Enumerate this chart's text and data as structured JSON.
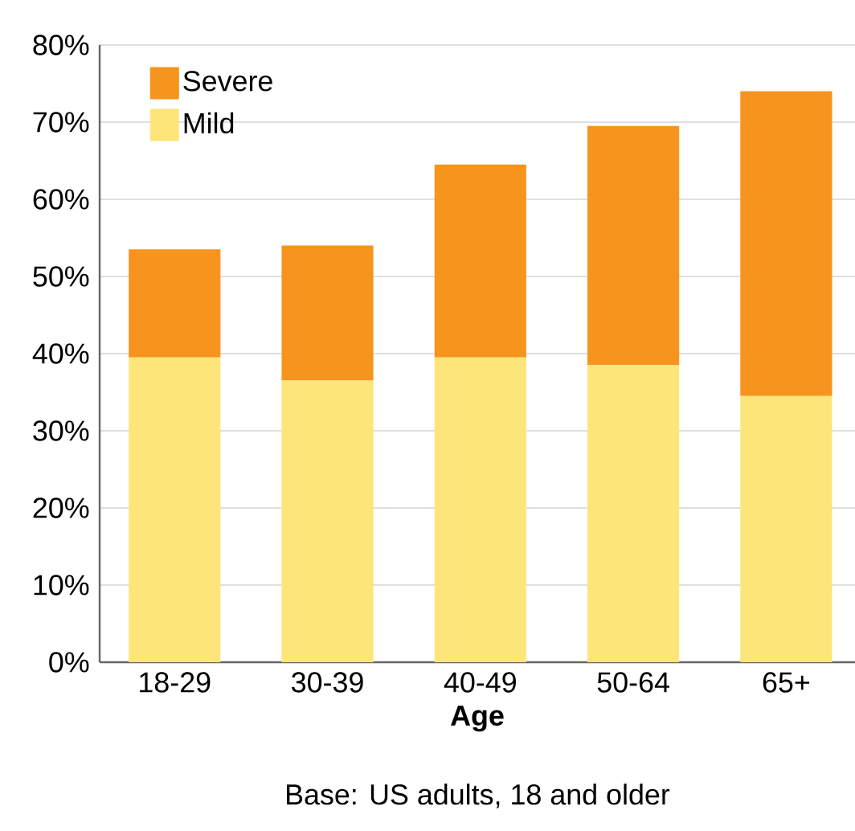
{
  "chart_data": {
    "type": "bar",
    "stacked": true,
    "xlabel": "Age",
    "annotations": [
      "Base: US adults, 18 and older"
    ],
    "categories": [
      "18-29",
      "30-39",
      "40-49",
      "50-64",
      "65+"
    ],
    "series": [
      {
        "name": "Mild",
        "color": "#fde57a",
        "values": [
          39.5,
          36.5,
          39.5,
          38.5,
          34.5
        ]
      },
      {
        "name": "Severe",
        "color": "#f7941d",
        "values": [
          14,
          17.5,
          25,
          31,
          39.5
        ]
      }
    ],
    "ylim": [
      0,
      80
    ],
    "yticks": [
      {
        "value": 0,
        "label": "0%"
      },
      {
        "value": 10,
        "label": "10%"
      },
      {
        "value": 20,
        "label": "20%"
      },
      {
        "value": 30,
        "label": "30%"
      },
      {
        "value": 40,
        "label": "40%"
      },
      {
        "value": 50,
        "label": "50%"
      },
      {
        "value": 60,
        "label": "60%"
      },
      {
        "value": 70,
        "label": "70%"
      },
      {
        "value": 80,
        "label": "80%"
      }
    ],
    "grid": "y",
    "legend": "top left"
  }
}
